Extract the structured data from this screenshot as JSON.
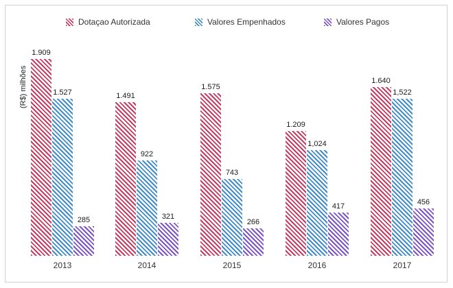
{
  "chart_data": {
    "type": "bar",
    "title": "",
    "xlabel": "",
    "ylabel": "(R$) milhões",
    "categories": [
      "2013",
      "2014",
      "2015",
      "2016",
      "2017"
    ],
    "series": [
      {
        "name": "Dotaçao Autorizada",
        "color": "#c73a62",
        "values": [
          1909,
          1491,
          1575,
          1209,
          1640
        ],
        "labels": [
          "1.909",
          "1.491",
          "1.575",
          "1.209",
          "1.640"
        ]
      },
      {
        "name": "Valores Empenhados",
        "color": "#3e8ccb",
        "values": [
          1527,
          922,
          743,
          1024,
          1522
        ],
        "labels": [
          "1.527",
          "922",
          "743",
          "1,024",
          "1,522"
        ]
      },
      {
        "name": "Valores Pagos",
        "color": "#7c52c6",
        "values": [
          285,
          321,
          266,
          417,
          456
        ],
        "labels": [
          "285",
          "321",
          "266",
          "417",
          "456"
        ]
      }
    ],
    "ylim": [
      0,
      1950
    ],
    "grid": false,
    "legend_position": "top",
    "bar_style": "diagonal-hatch"
  }
}
